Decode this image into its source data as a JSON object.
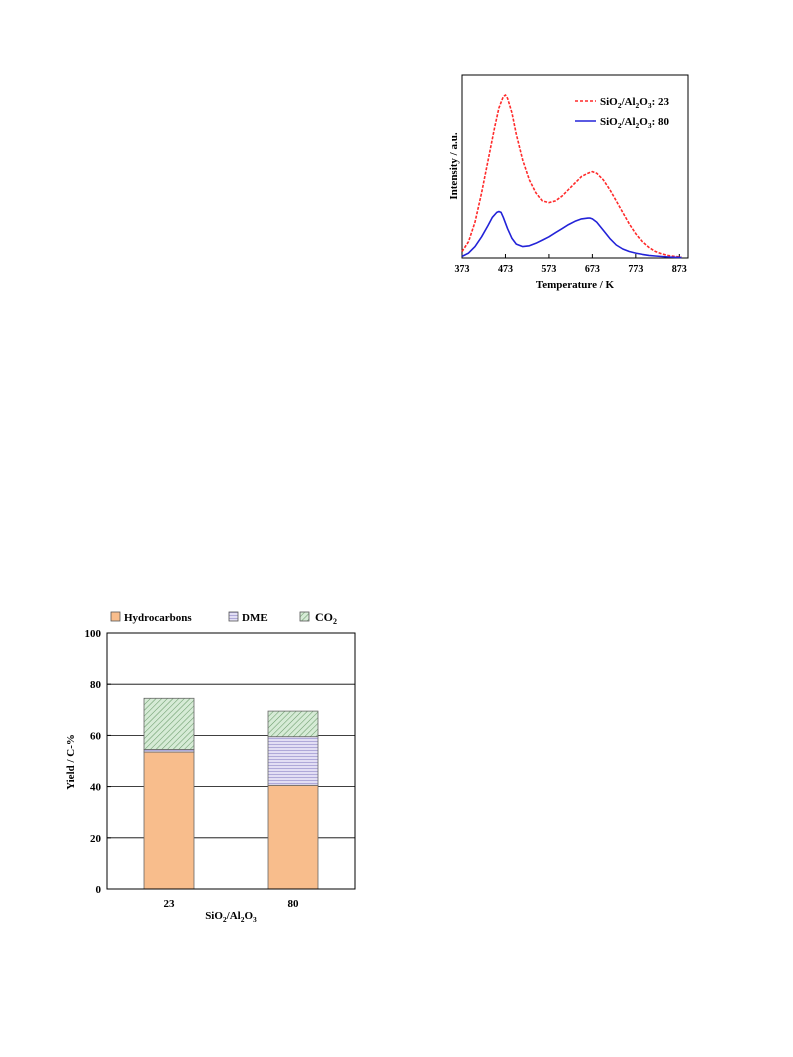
{
  "chart_data": [
    {
      "type": "line",
      "xlabel": "Temperature / K",
      "ylabel": "Intensity / a.u.",
      "xlim": [
        373,
        893
      ],
      "ylim": [
        0,
        1
      ],
      "x_ticks": [
        373,
        473,
        573,
        673,
        773,
        873
      ],
      "y_ticks_shown": false,
      "grid": false,
      "legend": "top-right",
      "series": [
        {
          "name": "SiO2/Al2O3: 23",
          "name_parts": {
            "a": "SiO",
            "b": "2",
            "c": "/Al",
            "d": "2",
            "e": "O",
            "f": "3",
            "g": ": 23"
          },
          "color": "#ff2a2a",
          "style": "dashed",
          "x": [
            373,
            388,
            403,
            418,
            433,
            448,
            458,
            468,
            473,
            478,
            488,
            498,
            513,
            528,
            543,
            558,
            573,
            588,
            603,
            618,
            633,
            648,
            663,
            673,
            683,
            698,
            713,
            728,
            743,
            758,
            773,
            788,
            803,
            818,
            833,
            848,
            863,
            878
          ],
          "y": [
            0.04,
            0.1,
            0.22,
            0.4,
            0.6,
            0.8,
            0.92,
            0.99,
            1.0,
            0.98,
            0.89,
            0.76,
            0.6,
            0.48,
            0.4,
            0.35,
            0.34,
            0.35,
            0.38,
            0.42,
            0.46,
            0.5,
            0.52,
            0.53,
            0.52,
            0.48,
            0.42,
            0.35,
            0.28,
            0.21,
            0.15,
            0.1,
            0.065,
            0.04,
            0.025,
            0.015,
            0.01,
            0.005
          ]
        },
        {
          "name": "SiO2/Al2O3: 80",
          "name_parts": {
            "a": "SiO",
            "b": "2",
            "c": "/Al",
            "d": "2",
            "e": "O",
            "f": "3",
            "g": ": 80"
          },
          "color": "#2323d8",
          "style": "solid",
          "x": [
            373,
            388,
            403,
            418,
            433,
            443,
            453,
            458,
            463,
            468,
            478,
            488,
            498,
            513,
            528,
            543,
            558,
            573,
            588,
            603,
            618,
            633,
            648,
            663,
            668,
            673,
            683,
            698,
            713,
            728,
            743,
            758,
            773,
            788,
            803,
            818,
            833,
            848,
            863,
            878
          ],
          "y": [
            0.01,
            0.03,
            0.07,
            0.13,
            0.2,
            0.25,
            0.28,
            0.285,
            0.28,
            0.25,
            0.18,
            0.12,
            0.085,
            0.07,
            0.075,
            0.09,
            0.11,
            0.13,
            0.155,
            0.18,
            0.205,
            0.225,
            0.24,
            0.245,
            0.245,
            0.24,
            0.22,
            0.17,
            0.12,
            0.08,
            0.055,
            0.04,
            0.03,
            0.022,
            0.016,
            0.012,
            0.009,
            0.006,
            0.004,
            0.003
          ]
        }
      ]
    },
    {
      "type": "bar",
      "stacked": true,
      "categories": [
        "23",
        "80"
      ],
      "xlabel_parts": {
        "a": "SiO",
        "b": "2",
        "c": "/Al",
        "d": "2",
        "e": "O",
        "f": "3"
      },
      "ylabel": "Yield / C-%",
      "ylim": [
        0,
        100
      ],
      "y_ticks": [
        0,
        20,
        40,
        60,
        80,
        100
      ],
      "grid": true,
      "legend": "top",
      "series": [
        {
          "name": "Hydrocarbons",
          "fill": "#f8bd8c",
          "pattern": "solid",
          "values": [
            53.5,
            40.5
          ]
        },
        {
          "name": "DME",
          "fill": "#d9d5f0",
          "pattern": "horizontal-lines",
          "values": [
            1.0,
            19.0
          ]
        },
        {
          "name": "CO",
          "name_sub": "2",
          "fill": "#cfe6cf",
          "pattern": "diagonal-lines",
          "values": [
            20.0,
            10.0
          ]
        }
      ]
    }
  ]
}
